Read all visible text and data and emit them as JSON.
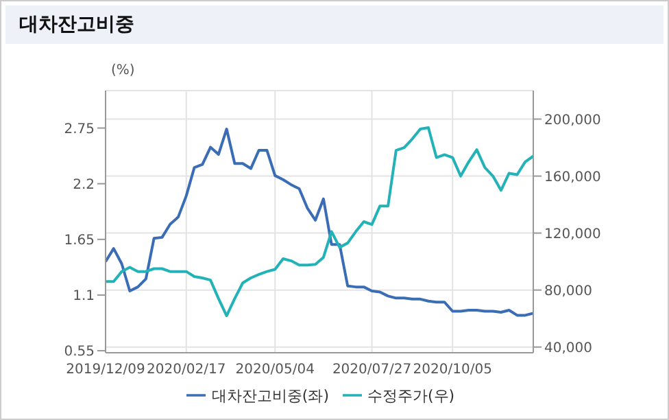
{
  "chart_data": {
    "type": "line",
    "title": "대차잔고비중",
    "ylabel": "(%)",
    "x": [
      "2019-12-09",
      "2019-12-16",
      "2019-12-23",
      "2019-12-30",
      "2020-01-06",
      "2020-01-13",
      "2020-01-20",
      "2020-01-27",
      "2020-02-03",
      "2020-02-10",
      "2020-02-17",
      "2020-02-24",
      "2020-03-02",
      "2020-03-09",
      "2020-03-16",
      "2020-03-23",
      "2020-03-30",
      "2020-04-06",
      "2020-04-13",
      "2020-04-20",
      "2020-04-27",
      "2020-05-04",
      "2020-05-11",
      "2020-05-18",
      "2020-05-25",
      "2020-06-01",
      "2020-06-08",
      "2020-06-15",
      "2020-06-22",
      "2020-06-29",
      "2020-07-06",
      "2020-07-13",
      "2020-07-20",
      "2020-07-27",
      "2020-08-03",
      "2020-08-10",
      "2020-08-17",
      "2020-08-24",
      "2020-08-31",
      "2020-09-07",
      "2020-09-14",
      "2020-09-21",
      "2020-09-28",
      "2020-10-05",
      "2020-10-12",
      "2020-10-19",
      "2020-10-26",
      "2020-11-02",
      "2020-11-09",
      "2020-11-16",
      "2020-11-23",
      "2020-11-30",
      "2020-12-07",
      "2020-12-14"
    ],
    "series": [
      {
        "name": "대차잔고비중(좌)",
        "color": "#3a6db5",
        "values": [
          1.43,
          1.56,
          1.41,
          1.14,
          1.18,
          1.26,
          1.66,
          1.67,
          1.8,
          1.87,
          2.08,
          2.36,
          2.39,
          2.56,
          2.49,
          2.74,
          2.4,
          2.4,
          2.35,
          2.53,
          2.53,
          2.28,
          2.24,
          2.19,
          2.15,
          1.96,
          1.84,
          2.05,
          1.6,
          1.6,
          1.19,
          1.18,
          1.18,
          1.14,
          1.13,
          1.09,
          1.07,
          1.07,
          1.06,
          1.06,
          1.04,
          1.03,
          1.03,
          0.94,
          0.94,
          0.95,
          0.95,
          0.94,
          0.94,
          0.93,
          0.95,
          0.9,
          0.9,
          0.92
        ]
      },
      {
        "name": "수정주가(우)",
        "color": "#22b2b8",
        "axis": "y2",
        "values": [
          86000,
          86000,
          93000,
          96000,
          93000,
          93000,
          95000,
          95000,
          93000,
          93000,
          93000,
          89500,
          88500,
          87000,
          74000,
          62000,
          74000,
          85000,
          88500,
          91000,
          93000,
          94500,
          102000,
          100500,
          97500,
          97500,
          98000,
          103000,
          121000,
          110000,
          113000,
          121000,
          128000,
          126000,
          139000,
          139000,
          178000,
          180000,
          186000,
          193000,
          194000,
          173000,
          175000,
          173000,
          160000,
          170000,
          178500,
          166000,
          160000,
          150000,
          162000,
          161000,
          170000,
          174000
        ]
      }
    ],
    "xlim": [
      "2019-12-09",
      "2020-12-14"
    ],
    "xticks": [
      {
        "value": "2019-12-09",
        "label": "2019/12/09"
      },
      {
        "value": "2020-02-17",
        "label": "2020/02/17"
      },
      {
        "value": "2020-05-04",
        "label": "2020/05/04"
      },
      {
        "value": "2020-07-27",
        "label": "2020/07/27"
      },
      {
        "value": "2020-10-05",
        "label": "2020/10/05"
      }
    ],
    "ylim": [
      0.53,
      3.12
    ],
    "yticks": [
      0.55,
      1.1,
      1.65,
      2.2,
      2.75
    ],
    "y2lim": [
      36000,
      220000
    ],
    "y2ticks": [
      {
        "value": 40000,
        "label": "40,000"
      },
      {
        "value": 80000,
        "label": "80,000"
      },
      {
        "value": 120000,
        "label": "120,000"
      },
      {
        "value": 160000,
        "label": "160,000"
      },
      {
        "value": 200000,
        "label": "200,000"
      }
    ],
    "grid": true,
    "legend": "bottom",
    "marker": "none",
    "line_style": "solid"
  }
}
